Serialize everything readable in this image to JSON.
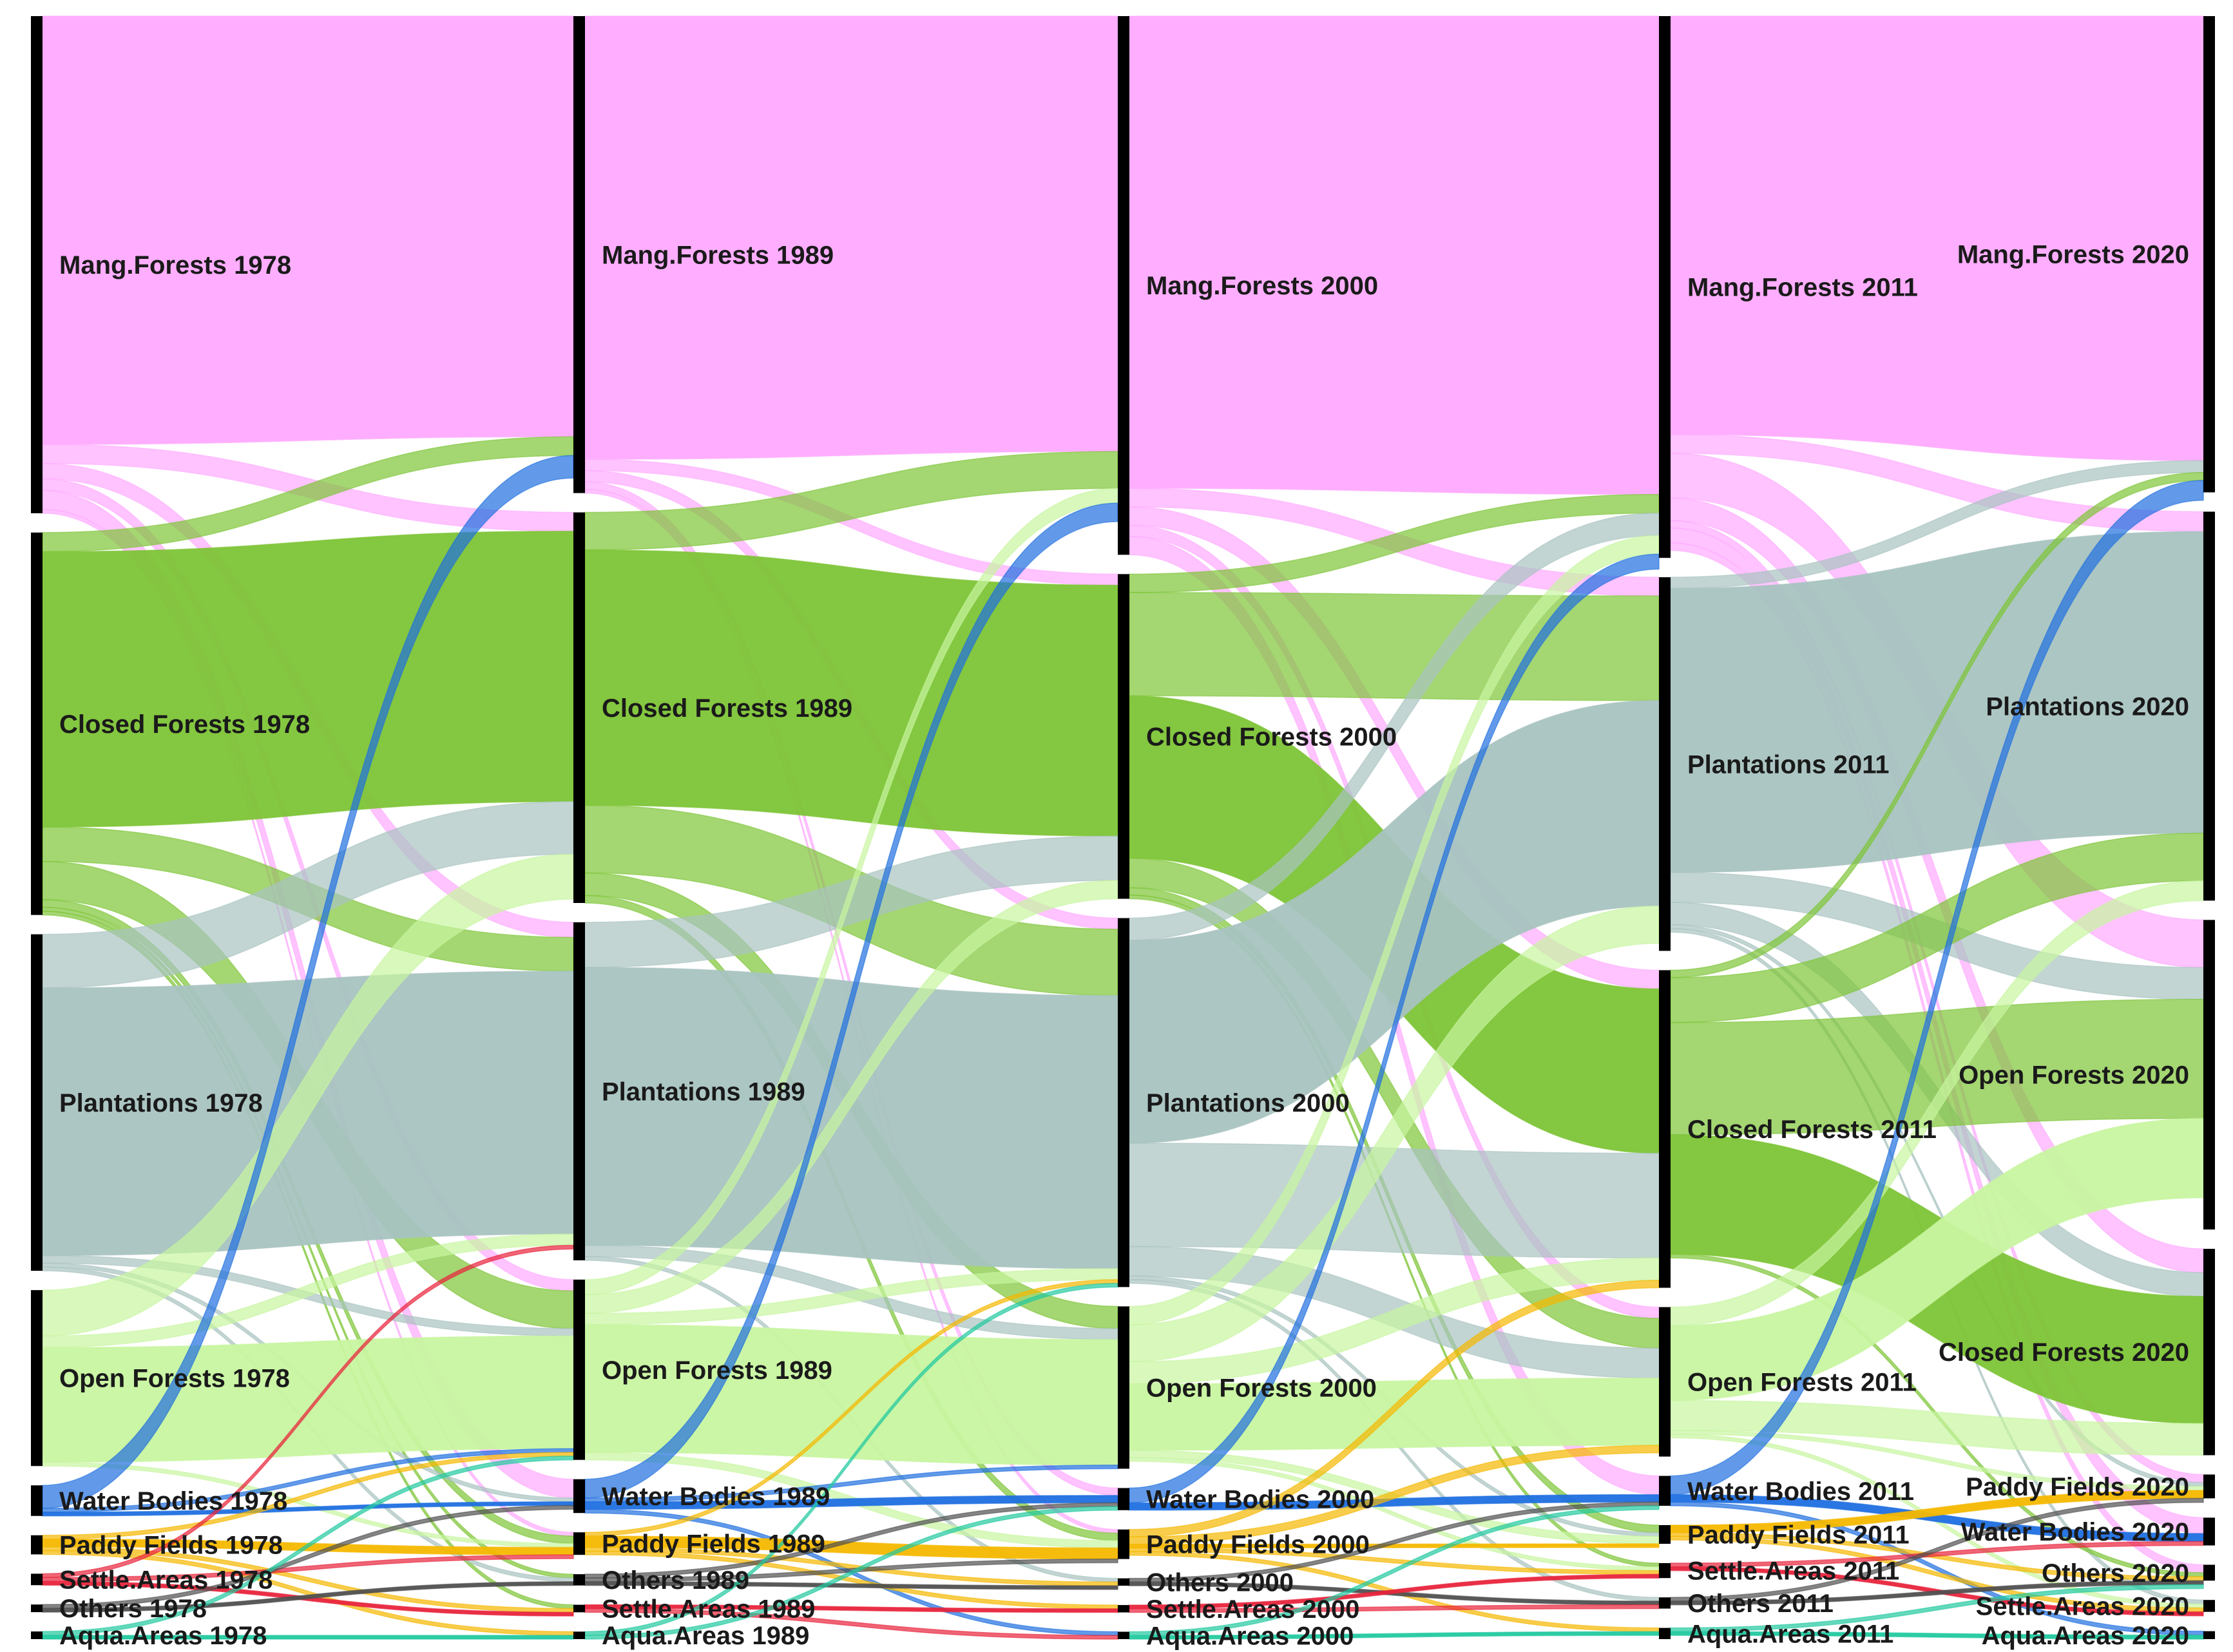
{
  "diagram": {
    "type": "sankey",
    "columns": [
      {
        "year": "1978",
        "nodes": [
          {
            "id": "mang",
            "label": "Mang.Forests 1978"
          },
          {
            "id": "closed",
            "label": "Closed Forests 1978"
          },
          {
            "id": "plant",
            "label": "Plantations 1978"
          },
          {
            "id": "open",
            "label": "Open Forests 1978"
          },
          {
            "id": "water",
            "label": "Water Bodies 1978"
          },
          {
            "id": "paddy",
            "label": "Paddy Fields 1978"
          },
          {
            "id": "settle",
            "label": "Settle.Areas 1978"
          },
          {
            "id": "others",
            "label": "Others 1978"
          },
          {
            "id": "aqua",
            "label": "Aqua.Areas 1978"
          }
        ]
      },
      {
        "year": "1989",
        "nodes": [
          {
            "id": "mang",
            "label": "Mang.Forests 1989"
          },
          {
            "id": "closed",
            "label": "Closed Forests 1989"
          },
          {
            "id": "plant",
            "label": "Plantations 1989"
          },
          {
            "id": "open",
            "label": "Open Forests 1989"
          },
          {
            "id": "water",
            "label": "Water Bodies 1989"
          },
          {
            "id": "paddy",
            "label": "Paddy Fields 1989"
          },
          {
            "id": "others",
            "label": "Others 1989"
          },
          {
            "id": "settle",
            "label": "Settle.Areas 1989"
          },
          {
            "id": "aqua",
            "label": "Aqua.Areas 1989"
          }
        ]
      },
      {
        "year": "2000",
        "nodes": [
          {
            "id": "mang",
            "label": "Mang.Forests 2000"
          },
          {
            "id": "closed",
            "label": "Closed Forests 2000"
          },
          {
            "id": "plant",
            "label": "Plantations 2000"
          },
          {
            "id": "open",
            "label": "Open Forests 2000"
          },
          {
            "id": "water",
            "label": "Water Bodies 2000"
          },
          {
            "id": "paddy",
            "label": "Paddy Fields 2000"
          },
          {
            "id": "others",
            "label": "Others 2000"
          },
          {
            "id": "settle",
            "label": "Settle.Areas 2000"
          },
          {
            "id": "aqua",
            "label": "Aqua.Areas 2000"
          }
        ]
      },
      {
        "year": "2011",
        "nodes": [
          {
            "id": "mang",
            "label": "Mang.Forests 2011"
          },
          {
            "id": "plant",
            "label": "Plantations 2011"
          },
          {
            "id": "closed",
            "label": "Closed Forests 2011"
          },
          {
            "id": "open",
            "label": "Open Forests 2011"
          },
          {
            "id": "water",
            "label": "Water Bodies 2011"
          },
          {
            "id": "paddy",
            "label": "Paddy Fields 2011"
          },
          {
            "id": "settle",
            "label": "Settle.Areas 2011"
          },
          {
            "id": "others",
            "label": "Others 2011"
          },
          {
            "id": "aqua",
            "label": "Aqua.Areas 2011"
          }
        ]
      },
      {
        "year": "2020",
        "nodes": [
          {
            "id": "mang",
            "label": "Mang.Forests 2020"
          },
          {
            "id": "plant",
            "label": "Plantations 2020"
          },
          {
            "id": "open",
            "label": "Open Forests 2020"
          },
          {
            "id": "closed",
            "label": "Closed Forests 2020"
          },
          {
            "id": "paddy",
            "label": "Paddy Fields 2020"
          },
          {
            "id": "water",
            "label": "Water Bodies 2020"
          },
          {
            "id": "others",
            "label": "Others 2020"
          },
          {
            "id": "settle",
            "label": "Settle.Areas 2020"
          },
          {
            "id": "aqua",
            "label": "Aqua.Areas 2020"
          }
        ]
      }
    ],
    "category_colors": {
      "mang": "#ffaaff",
      "closed": "#7dc436",
      "plant": "#a8c3c0",
      "open": "#c8f5a0",
      "water": "#1f6fe0",
      "paddy": "#f5b800",
      "settle": "#e8243c",
      "others": "#505050",
      "aqua": "#22c9a0"
    },
    "node_bar_color": "#000000",
    "node_values": [
      {
        "mang": 130,
        "closed": 100,
        "plant": 88,
        "open": 46,
        "water": 8,
        "paddy": 5,
        "settle": 3,
        "others": 2,
        "aqua": 2
      },
      {
        "mang": 127,
        "closed": 104,
        "plant": 90,
        "open": 48,
        "water": 9,
        "paddy": 6,
        "others": 3,
        "settle": 2,
        "aqua": 2
      },
      {
        "mang": 146,
        "closed": 88,
        "plant": 100,
        "open": 44,
        "water": 6,
        "paddy": 8,
        "others": 2,
        "settle": 2,
        "aqua": 2
      },
      {
        "mang": 145,
        "plant": 100,
        "closed": 85,
        "open": 40,
        "water": 8,
        "paddy": 5,
        "settle": 4,
        "others": 3,
        "aqua": 3
      },
      {
        "mang": 120,
        "plant": 98,
        "open": 78,
        "closed": 52,
        "paddy": 6,
        "water": 7,
        "others": 4,
        "settle": 3,
        "aqua": 2
      }
    ],
    "flows": [
      [
        {
          "from": "mang",
          "to": "mang",
          "value": 112
        },
        {
          "from": "mang",
          "to": "closed",
          "value": 5
        },
        {
          "from": "mang",
          "to": "plant",
          "value": 4
        },
        {
          "from": "mang",
          "to": "open",
          "value": 3
        },
        {
          "from": "mang",
          "to": "water",
          "value": 5
        },
        {
          "from": "mang",
          "to": "paddy",
          "value": 1
        },
        {
          "from": "closed",
          "to": "closed",
          "value": 72
        },
        {
          "from": "closed",
          "to": "mang",
          "value": 5
        },
        {
          "from": "closed",
          "to": "plant",
          "value": 9
        },
        {
          "from": "closed",
          "to": "open",
          "value": 10
        },
        {
          "from": "closed",
          "to": "paddy",
          "value": 2
        },
        {
          "from": "closed",
          "to": "settle",
          "value": 1
        },
        {
          "from": "closed",
          "to": "others",
          "value": 1
        },
        {
          "from": "plant",
          "to": "plant",
          "value": 70
        },
        {
          "from": "plant",
          "to": "closed",
          "value": 14
        },
        {
          "from": "plant",
          "to": "open",
          "value": 2
        },
        {
          "from": "plant",
          "to": "water",
          "value": 1
        },
        {
          "from": "plant",
          "to": "others",
          "value": 1
        },
        {
          "from": "open",
          "to": "open",
          "value": 30
        },
        {
          "from": "open",
          "to": "closed",
          "value": 12
        },
        {
          "from": "open",
          "to": "plant",
          "value": 3
        },
        {
          "from": "open",
          "to": "paddy",
          "value": 1
        },
        {
          "from": "water",
          "to": "mang",
          "value": 6
        },
        {
          "from": "water",
          "to": "open",
          "value": 1
        },
        {
          "from": "water",
          "to": "water",
          "value": 1
        },
        {
          "from": "paddy",
          "to": "paddy",
          "value": 2
        },
        {
          "from": "paddy",
          "to": "open",
          "value": 1
        },
        {
          "from": "paddy",
          "to": "settle",
          "value": 1
        },
        {
          "from": "paddy",
          "to": "aqua",
          "value": 1
        },
        {
          "from": "settle",
          "to": "paddy",
          "value": 1
        },
        {
          "from": "settle",
          "to": "settle",
          "value": 1
        },
        {
          "from": "settle",
          "to": "plant",
          "value": 1
        },
        {
          "from": "others",
          "to": "others",
          "value": 1
        },
        {
          "from": "others",
          "to": "water",
          "value": 1
        },
        {
          "from": "aqua",
          "to": "aqua",
          "value": 1
        },
        {
          "from": "aqua",
          "to": "open",
          "value": 1
        }
      ],
      [
        {
          "from": "mang",
          "to": "mang",
          "value": 118
        },
        {
          "from": "mang",
          "to": "closed",
          "value": 3
        },
        {
          "from": "mang",
          "to": "plant",
          "value": 3
        },
        {
          "from": "mang",
          "to": "water",
          "value": 2
        },
        {
          "from": "mang",
          "to": "paddy",
          "value": 1
        },
        {
          "from": "closed",
          "to": "closed",
          "value": 68
        },
        {
          "from": "closed",
          "to": "mang",
          "value": 10
        },
        {
          "from": "closed",
          "to": "plant",
          "value": 18
        },
        {
          "from": "closed",
          "to": "open",
          "value": 6
        },
        {
          "from": "closed",
          "to": "paddy",
          "value": 2
        },
        {
          "from": "plant",
          "to": "plant",
          "value": 74
        },
        {
          "from": "plant",
          "to": "closed",
          "value": 12
        },
        {
          "from": "plant",
          "to": "open",
          "value": 3
        },
        {
          "from": "plant",
          "to": "others",
          "value": 1
        },
        {
          "from": "open",
          "to": "open",
          "value": 34
        },
        {
          "from": "open",
          "to": "closed",
          "value": 5
        },
        {
          "from": "open",
          "to": "mang",
          "value": 4
        },
        {
          "from": "open",
          "to": "plant",
          "value": 3
        },
        {
          "from": "open",
          "to": "paddy",
          "value": 2
        },
        {
          "from": "water",
          "to": "mang",
          "value": 5
        },
        {
          "from": "water",
          "to": "water",
          "value": 2
        },
        {
          "from": "water",
          "to": "open",
          "value": 1
        },
        {
          "from": "water",
          "to": "aqua",
          "value": 1
        },
        {
          "from": "paddy",
          "to": "paddy",
          "value": 3
        },
        {
          "from": "paddy",
          "to": "settle",
          "value": 1
        },
        {
          "from": "paddy",
          "to": "plant",
          "value": 1
        },
        {
          "from": "paddy",
          "to": "others",
          "value": 1
        },
        {
          "from": "others",
          "to": "others",
          "value": 1
        },
        {
          "from": "others",
          "to": "water",
          "value": 1
        },
        {
          "from": "others",
          "to": "paddy",
          "value": 1
        },
        {
          "from": "settle",
          "to": "settle",
          "value": 1
        },
        {
          "from": "settle",
          "to": "aqua",
          "value": 1
        },
        {
          "from": "aqua",
          "to": "water",
          "value": 1
        },
        {
          "from": "aqua",
          "to": "plant",
          "value": 1
        }
      ],
      [
        {
          "from": "mang",
          "to": "mang",
          "value": 128
        },
        {
          "from": "mang",
          "to": "plant",
          "value": 5
        },
        {
          "from": "mang",
          "to": "closed",
          "value": 5
        },
        {
          "from": "mang",
          "to": "water",
          "value": 5
        },
        {
          "from": "mang",
          "to": "open",
          "value": 3
        },
        {
          "from": "closed",
          "to": "closed",
          "value": 44
        },
        {
          "from": "closed",
          "to": "plant",
          "value": 28
        },
        {
          "from": "closed",
          "to": "mang",
          "value": 5
        },
        {
          "from": "closed",
          "to": "open",
          "value": 8
        },
        {
          "from": "closed",
          "to": "paddy",
          "value": 2
        },
        {
          "from": "closed",
          "to": "settle",
          "value": 1
        },
        {
          "from": "plant",
          "to": "plant",
          "value": 55
        },
        {
          "from": "plant",
          "to": "closed",
          "value": 28
        },
        {
          "from": "plant",
          "to": "mang",
          "value": 6
        },
        {
          "from": "plant",
          "to": "open",
          "value": 8
        },
        {
          "from": "plant",
          "to": "paddy",
          "value": 1
        },
        {
          "from": "plant",
          "to": "others",
          "value": 1
        },
        {
          "from": "open",
          "to": "open",
          "value": 18
        },
        {
          "from": "open",
          "to": "plant",
          "value": 10
        },
        {
          "from": "open",
          "to": "closed",
          "value": 6
        },
        {
          "from": "open",
          "to": "mang",
          "value": 5
        },
        {
          "from": "open",
          "to": "paddy",
          "value": 2
        },
        {
          "from": "open",
          "to": "settle",
          "value": 1
        },
        {
          "from": "water",
          "to": "water",
          "value": 2
        },
        {
          "from": "water",
          "to": "mang",
          "value": 4
        },
        {
          "from": "paddy",
          "to": "paddy",
          "value": 1
        },
        {
          "from": "paddy",
          "to": "closed",
          "value": 2
        },
        {
          "from": "paddy",
          "to": "open",
          "value": 2
        },
        {
          "from": "paddy",
          "to": "settle",
          "value": 1
        },
        {
          "from": "paddy",
          "to": "aqua",
          "value": 1
        },
        {
          "from": "others",
          "to": "others",
          "value": 1
        },
        {
          "from": "others",
          "to": "water",
          "value": 1
        },
        {
          "from": "settle",
          "to": "settle",
          "value": 1
        },
        {
          "from": "settle",
          "to": "others",
          "value": 1
        },
        {
          "from": "aqua",
          "to": "aqua",
          "value": 1
        },
        {
          "from": "aqua",
          "to": "water",
          "value": 1
        }
      ],
      [
        {
          "from": "mang",
          "to": "mang",
          "value": 112
        },
        {
          "from": "mang",
          "to": "open",
          "value": 12
        },
        {
          "from": "mang",
          "to": "closed",
          "value": 6
        },
        {
          "from": "mang",
          "to": "plant",
          "value": 5
        },
        {
          "from": "mang",
          "to": "water",
          "value": 4
        },
        {
          "from": "mang",
          "to": "paddy",
          "value": 2
        },
        {
          "from": "mang",
          "to": "others",
          "value": 2
        },
        {
          "from": "plant",
          "to": "plant",
          "value": 76
        },
        {
          "from": "plant",
          "to": "open",
          "value": 8
        },
        {
          "from": "plant",
          "to": "closed",
          "value": 6
        },
        {
          "from": "plant",
          "to": "mang",
          "value": 3
        },
        {
          "from": "plant",
          "to": "paddy",
          "value": 1
        },
        {
          "from": "plant",
          "to": "settle",
          "value": 1
        },
        {
          "from": "closed",
          "to": "closed",
          "value": 32
        },
        {
          "from": "closed",
          "to": "open",
          "value": 30
        },
        {
          "from": "closed",
          "to": "plant",
          "value": 12
        },
        {
          "from": "closed",
          "to": "mang",
          "value": 2
        },
        {
          "from": "closed",
          "to": "others",
          "value": 1
        },
        {
          "from": "open",
          "to": "open",
          "value": 20
        },
        {
          "from": "open",
          "to": "closed",
          "value": 8
        },
        {
          "from": "open",
          "to": "plant",
          "value": 5
        },
        {
          "from": "open",
          "to": "paddy",
          "value": 1
        },
        {
          "from": "open",
          "to": "settle",
          "value": 1
        },
        {
          "from": "water",
          "to": "mang",
          "value": 5
        },
        {
          "from": "water",
          "to": "water",
          "value": 2
        },
        {
          "from": "water",
          "to": "aqua",
          "value": 1
        },
        {
          "from": "paddy",
          "to": "paddy",
          "value": 2
        },
        {
          "from": "paddy",
          "to": "settle",
          "value": 1
        },
        {
          "from": "paddy",
          "to": "others",
          "value": 1
        },
        {
          "from": "settle",
          "to": "settle",
          "value": 1
        },
        {
          "from": "settle",
          "to": "water",
          "value": 1
        },
        {
          "from": "others",
          "to": "others",
          "value": 1
        },
        {
          "from": "others",
          "to": "paddy",
          "value": 1
        },
        {
          "from": "aqua",
          "to": "aqua",
          "value": 1
        },
        {
          "from": "aqua",
          "to": "others",
          "value": 1
        }
      ]
    ]
  }
}
